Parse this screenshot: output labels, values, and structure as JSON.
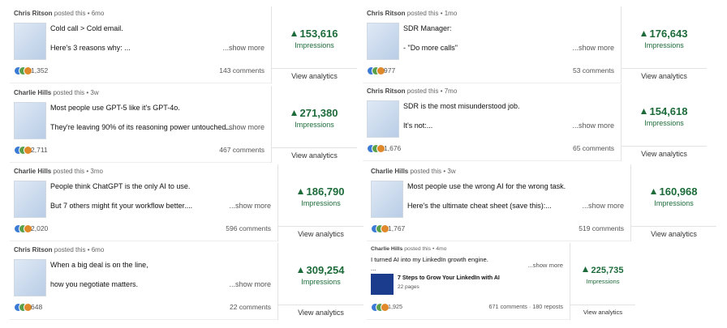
{
  "posts": [
    {
      "author": "Chris Ritson",
      "posted": "posted this • 6mo",
      "text": [
        "Cold call > Cold email.",
        "Here's 3 reasons why: ..."
      ],
      "show_more": "...show more",
      "reactions": "1,352",
      "comments": "143 comments",
      "impressions": "153,616",
      "impressions_label": "Impressions",
      "view_analytics": "View analytics"
    },
    {
      "author": "Chris Ritson",
      "posted": "posted this • 1mo",
      "text": [
        "SDR Manager:",
        "- \"Do more calls\""
      ],
      "show_more": "...show more",
      "reactions": "977",
      "comments": "53 comments",
      "impressions": "176,643",
      "impressions_label": "Impressions",
      "view_analytics": "View analytics"
    },
    {
      "author": "Charlie Hills",
      "posted": "posted this • 3w",
      "text": [
        "Most people use GPT-5 like it's GPT-4o.",
        "They're leaving 90% of its reasoning power untouched...."
      ],
      "show_more": "...show more",
      "reactions": "2,711",
      "comments": "467 comments",
      "impressions": "271,380",
      "impressions_label": "Impressions",
      "view_analytics": "View analytics"
    },
    {
      "author": "Chris Ritson",
      "posted": "posted this • 7mo",
      "text": [
        "SDR is the most misunderstood job.",
        "It's not:..."
      ],
      "show_more": "...show more",
      "reactions": "1,676",
      "comments": "65 comments",
      "impressions": "154,618",
      "impressions_label": "Impressions",
      "view_analytics": "View analytics"
    },
    {
      "author": "Charlie Hills",
      "posted": "posted this • 3mo",
      "text": [
        "People think ChatGPT is the only AI to use.",
        "But 7 others might fit your workflow better...."
      ],
      "show_more": "...show more",
      "reactions": "2,020",
      "comments": "596 comments",
      "impressions": "186,790",
      "impressions_label": "Impressions",
      "view_analytics": "View analytics"
    },
    {
      "author": "Charlie Hills",
      "posted": "posted this • 3w",
      "text": [
        "Most people use the wrong AI for the wrong task.",
        "Here's the ultimate cheat sheet (save this):..."
      ],
      "show_more": "...show more",
      "reactions": "1,767",
      "comments": "519 comments",
      "impressions": "160,968",
      "impressions_label": "Impressions",
      "view_analytics": "View analytics"
    },
    {
      "author": "Chris Ritson",
      "posted": "posted this • 6mo",
      "text": [
        "When a big deal is on the line,",
        "how you negotiate matters."
      ],
      "show_more": "...show more",
      "reactions": "648",
      "comments": "22 comments",
      "impressions": "309,254",
      "impressions_label": "Impressions",
      "view_analytics": "View analytics"
    },
    {
      "author": "Charlie Hills",
      "posted": "posted this • 4mo",
      "text": [
        "I turned AI into my LinkedIn growth engine.",
        "..."
      ],
      "show_more": "...show more",
      "document": {
        "title": "7 Steps to Grow Your LinkedIn with AI",
        "pages": "22 pages"
      },
      "reactions": "1,925",
      "comments": "671 comments · 180 reposts",
      "impressions": "225,735",
      "impressions_label": "Impressions",
      "view_analytics": "View analytics"
    }
  ]
}
